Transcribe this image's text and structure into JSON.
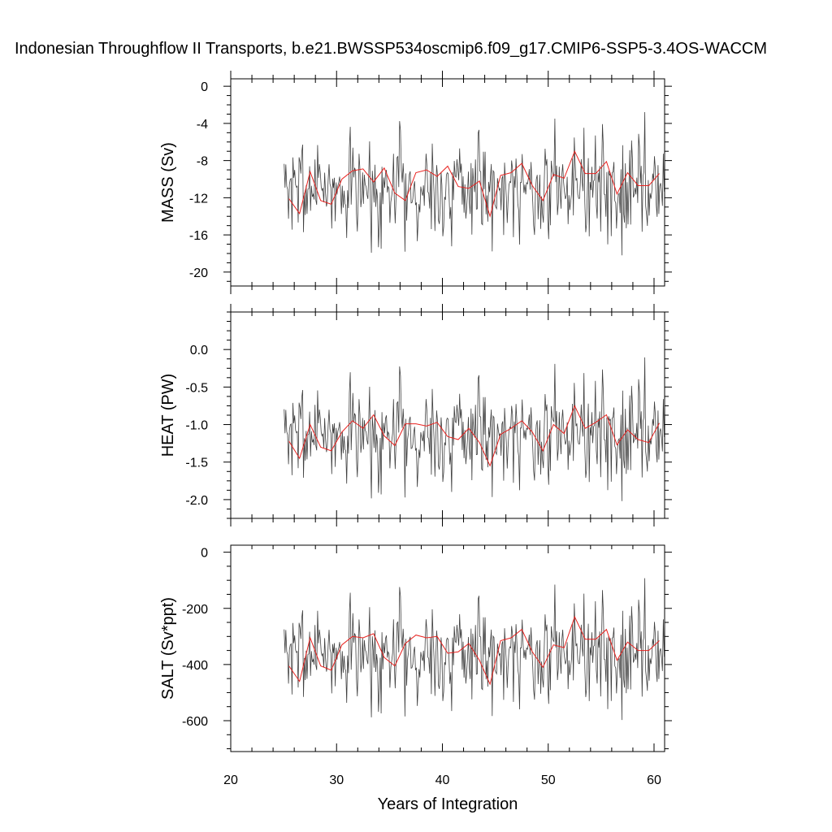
{
  "chart_data": {
    "type": "line",
    "title": "Indonesian Throughflow II Transports, b.e21.BWSSP534oscmip6.f09_g17.CMIP6-SSP5-3.4OS-WACCM",
    "xlabel": "Years of Integration",
    "xlim": [
      20,
      61
    ],
    "x_ticks": [
      "20",
      "30",
      "40",
      "50",
      "60"
    ],
    "colors": {
      "monthly": "#404040",
      "annual": "#e8211e"
    },
    "panels": [
      {
        "ylabel": "MASS (Sv)",
        "ylim": [
          -21.5,
          0.8
        ],
        "y_ticks": [
          "0",
          "-4",
          "-8",
          "-12",
          "-16",
          "-20"
        ],
        "y_tick_values": [
          0,
          -4,
          -8,
          -12,
          -16,
          -20
        ],
        "series": [
          {
            "name": "monthly",
            "seed": 7,
            "mean": -10.8,
            "std": 2.9,
            "min": -21.3,
            "max": 0.4
          },
          {
            "name": "annual mean",
            "x": [
              25.5,
              26.5,
              27.5,
              28.5,
              29.5,
              30.5,
              31.5,
              32.5,
              33.5,
              34.5,
              35.5,
              36.5,
              37.5,
              38.5,
              39.5,
              40.5,
              41.5,
              42.5,
              43.5,
              44.5,
              45.5,
              46.5,
              47.5,
              48.5,
              49.5,
              50.5,
              51.5,
              52.5,
              53.5,
              54.5,
              55.5,
              56.5,
              57.5,
              58.5,
              59.5,
              60.5
            ],
            "values": [
              -12.1,
              -13.7,
              -9.2,
              -12.3,
              -12.7,
              -10.0,
              -9.1,
              -8.9,
              -10.3,
              -8.8,
              -11.5,
              -12.3,
              -9.3,
              -9.0,
              -9.7,
              -8.6,
              -10.8,
              -11.0,
              -10.2,
              -14.0,
              -9.6,
              -9.3,
              -8.3,
              -10.7,
              -12.3,
              -9.5,
              -9.9,
              -7.0,
              -9.4,
              -9.4,
              -8.1,
              -11.6,
              -9.3,
              -10.7,
              -10.7,
              -9.4
            ]
          }
        ]
      },
      {
        "ylabel": "HEAT (PW)",
        "ylim": [
          -2.25,
          0.5
        ],
        "y_ticks": [
          "0.0",
          "-0.5",
          "-1.0",
          "-1.5",
          "-2.0"
        ],
        "y_tick_values": [
          0,
          -0.5,
          -1.0,
          -1.5,
          -2.0
        ],
        "series": [
          {
            "name": "monthly",
            "seed": 7,
            "mean": -1.1,
            "std": 0.36,
            "min": -2.25,
            "max": 0.45
          },
          {
            "name": "annual mean",
            "x": [
              25.5,
              26.5,
              27.5,
              28.5,
              29.5,
              30.5,
              31.5,
              32.5,
              33.5,
              34.5,
              35.5,
              36.5,
              37.5,
              38.5,
              39.5,
              40.5,
              41.5,
              42.5,
              43.5,
              44.5,
              45.5,
              46.5,
              47.5,
              48.5,
              49.5,
              50.5,
              51.5,
              52.5,
              53.5,
              54.5,
              55.5,
              56.5,
              57.5,
              58.5,
              59.5,
              60.5
            ],
            "values": [
              -1.22,
              -1.45,
              -1.0,
              -1.3,
              -1.35,
              -1.1,
              -0.95,
              -1.05,
              -0.87,
              -1.15,
              -1.28,
              -0.99,
              -0.99,
              -1.02,
              -0.97,
              -1.16,
              -1.2,
              -1.05,
              -1.24,
              -1.55,
              -1.13,
              -1.05,
              -0.95,
              -1.1,
              -1.35,
              -1.0,
              -1.12,
              -0.75,
              -1.05,
              -0.97,
              -0.87,
              -1.27,
              -1.07,
              -1.2,
              -1.24,
              -0.98
            ]
          }
        ]
      },
      {
        "ylabel": "SALT (Sv*ppt)",
        "ylim": [
          -710,
          25
        ],
        "y_ticks": [
          "0",
          "-200",
          "-400",
          "-600"
        ],
        "y_tick_values": [
          0,
          -200,
          -400,
          -600
        ],
        "series": [
          {
            "name": "monthly",
            "seed": 7,
            "mean": -355,
            "std": 95,
            "min": -705,
            "max": 15
          },
          {
            "name": "annual mean",
            "x": [
              25.5,
              26.5,
              27.5,
              28.5,
              29.5,
              30.5,
              31.5,
              32.5,
              33.5,
              34.5,
              35.5,
              36.5,
              37.5,
              38.5,
              39.5,
              40.5,
              41.5,
              42.5,
              43.5,
              44.5,
              45.5,
              46.5,
              47.5,
              48.5,
              49.5,
              50.5,
              51.5,
              52.5,
              53.5,
              54.5,
              55.5,
              56.5,
              57.5,
              58.5,
              59.5,
              60.5
            ],
            "values": [
              -405,
              -460,
              -305,
              -405,
              -420,
              -330,
              -300,
              -305,
              -290,
              -375,
              -405,
              -325,
              -295,
              -305,
              -300,
              -360,
              -355,
              -325,
              -385,
              -470,
              -315,
              -305,
              -275,
              -355,
              -410,
              -330,
              -340,
              -230,
              -310,
              -310,
              -275,
              -385,
              -320,
              -350,
              -350,
              -315
            ]
          }
        ]
      }
    ]
  }
}
